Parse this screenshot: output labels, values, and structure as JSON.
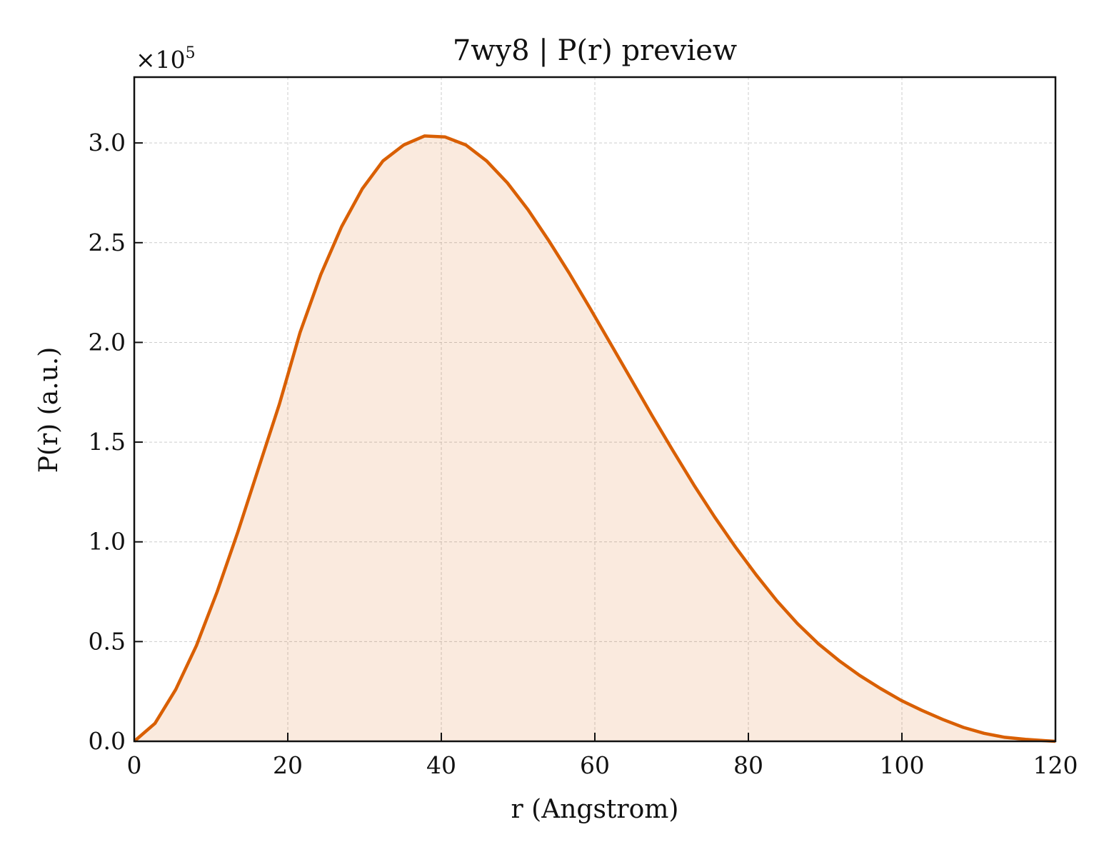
{
  "chart_data": {
    "type": "area",
    "title": "7wy8 | P(r) preview",
    "xlabel": "r (Angstrom)",
    "ylabel": "P(r) (a.u.)",
    "y_scale_label": "×10",
    "y_scale_exponent": "5",
    "xlim": [
      0,
      120
    ],
    "ylim": [
      0,
      3.33
    ],
    "grid": true,
    "x_ticks": [
      0,
      20,
      40,
      60,
      80,
      100,
      120
    ],
    "x_tick_labels": [
      "0",
      "20",
      "40",
      "60",
      "80",
      "100",
      "120"
    ],
    "y_ticks": [
      0,
      0.5,
      1.0,
      1.5,
      2.0,
      2.5,
      3.0
    ],
    "y_tick_labels": [
      "0.0",
      "0.5",
      "1.0",
      "1.5",
      "2.0",
      "2.5",
      "3.0"
    ],
    "colors": {
      "line": "#d95f02",
      "fill": "#d95f02",
      "grid": "#cccccc"
    },
    "series": [
      {
        "x": [
          0,
          2.7,
          5.4,
          8.1,
          10.8,
          13.5,
          16.2,
          18.9,
          21.6,
          24.3,
          27.0,
          29.7,
          32.4,
          35.1,
          37.8,
          40.5,
          43.2,
          45.9,
          48.6,
          51.3,
          54.0,
          56.7,
          59.4,
          62.1,
          64.8,
          67.5,
          70.2,
          72.9,
          75.6,
          78.3,
          81.0,
          83.7,
          86.4,
          89.1,
          91.8,
          94.5,
          97.2,
          99.9,
          102.6,
          105.3,
          108.0,
          110.7,
          113.4,
          116.1,
          118.8,
          120
        ],
        "y": [
          0,
          0.09,
          0.26,
          0.48,
          0.75,
          1.05,
          1.37,
          1.69,
          2.05,
          2.34,
          2.58,
          2.77,
          2.91,
          2.99,
          3.035,
          3.03,
          2.99,
          2.91,
          2.8,
          2.665,
          2.51,
          2.345,
          2.17,
          1.99,
          1.81,
          1.63,
          1.455,
          1.285,
          1.125,
          0.975,
          0.835,
          0.705,
          0.59,
          0.49,
          0.405,
          0.33,
          0.265,
          0.205,
          0.155,
          0.11,
          0.07,
          0.04,
          0.02,
          0.01,
          0.003,
          0
        ]
      }
    ]
  }
}
